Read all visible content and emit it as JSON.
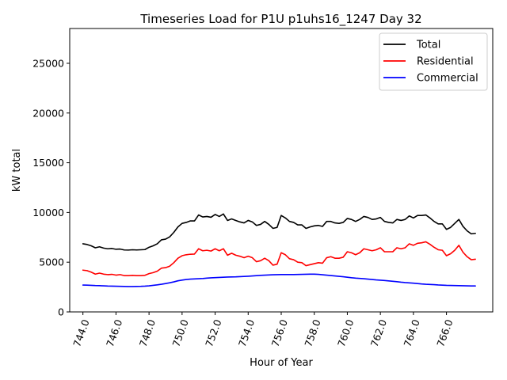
{
  "chart_data": {
    "type": "line",
    "title": "Timeseries Load for P1U p1uhs16_1247  Day 32",
    "xlabel": "Hour of Year",
    "ylabel": "kW total",
    "xlim": [
      743.2,
      768.8
    ],
    "ylim": [
      0,
      28500
    ],
    "xticks": [
      744.0,
      746.0,
      748.0,
      750.0,
      752.0,
      754.0,
      756.0,
      758.0,
      760.0,
      762.0,
      764.0,
      766.0
    ],
    "xtick_labels": [
      "744.0",
      "746.0",
      "748.0",
      "750.0",
      "752.0",
      "754.0",
      "756.0",
      "758.0",
      "760.0",
      "762.0",
      "764.0",
      "766.0"
    ],
    "yticks": [
      0,
      5000,
      10000,
      15000,
      20000,
      25000
    ],
    "ytick_labels": [
      "0",
      "5000",
      "10000",
      "15000",
      "20000",
      "25000"
    ],
    "x_start": 744.0,
    "x_step": 0.25,
    "legend_position": "top-right",
    "series": [
      {
        "name": "Total",
        "color": "#000000",
        "values": [
          6850,
          6780,
          6650,
          6450,
          6550,
          6420,
          6350,
          6380,
          6300,
          6320,
          6230,
          6220,
          6250,
          6230,
          6250,
          6270,
          6500,
          6650,
          6850,
          7250,
          7320,
          7550,
          8000,
          8550,
          8900,
          9000,
          9150,
          9150,
          9750,
          9550,
          9600,
          9520,
          9800,
          9600,
          9850,
          9200,
          9350,
          9200,
          9050,
          8950,
          9200,
          9050,
          8700,
          8800,
          9100,
          8800,
          8400,
          8500,
          9700,
          9450,
          9100,
          9000,
          8750,
          8750,
          8400,
          8550,
          8650,
          8700,
          8600,
          9100,
          9100,
          8950,
          8900,
          9000,
          9400,
          9300,
          9100,
          9300,
          9600,
          9500,
          9300,
          9350,
          9500,
          9100,
          9000,
          8950,
          9300,
          9200,
          9300,
          9650,
          9450,
          9700,
          9700,
          9750,
          9450,
          9100,
          8850,
          8850,
          8300,
          8500,
          8900,
          9300,
          8600,
          8150,
          7850,
          7900
        ]
      },
      {
        "name": "Residential",
        "color": "#ff0000",
        "values": [
          4200,
          4150,
          4000,
          3800,
          3900,
          3800,
          3750,
          3780,
          3700,
          3750,
          3650,
          3650,
          3680,
          3650,
          3650,
          3680,
          3850,
          3950,
          4100,
          4400,
          4450,
          4600,
          4950,
          5400,
          5650,
          5750,
          5800,
          5820,
          6350,
          6150,
          6200,
          6120,
          6350,
          6150,
          6350,
          5700,
          5900,
          5700,
          5600,
          5450,
          5600,
          5450,
          5050,
          5150,
          5400,
          5150,
          4700,
          4800,
          5950,
          5750,
          5350,
          5250,
          5000,
          4950,
          4650,
          4750,
          4850,
          4950,
          4900,
          5450,
          5550,
          5400,
          5400,
          5500,
          6050,
          5950,
          5750,
          5950,
          6350,
          6250,
          6150,
          6250,
          6450,
          6050,
          6050,
          6050,
          6450,
          6350,
          6450,
          6850,
          6700,
          6900,
          6950,
          7050,
          6800,
          6500,
          6250,
          6200,
          5650,
          5850,
          6200,
          6700,
          6000,
          5550,
          5250,
          5300
        ]
      },
      {
        "name": "Commercial",
        "color": "#0000ff",
        "values": [
          2700,
          2690,
          2670,
          2650,
          2640,
          2620,
          2600,
          2590,
          2580,
          2570,
          2560,
          2555,
          2555,
          2560,
          2570,
          2590,
          2620,
          2670,
          2720,
          2780,
          2850,
          2930,
          3020,
          3130,
          3200,
          3260,
          3300,
          3320,
          3340,
          3360,
          3400,
          3430,
          3450,
          3470,
          3490,
          3510,
          3520,
          3530,
          3550,
          3570,
          3590,
          3620,
          3650,
          3680,
          3700,
          3720,
          3740,
          3750,
          3760,
          3760,
          3760,
          3760,
          3770,
          3780,
          3790,
          3800,
          3800,
          3780,
          3740,
          3700,
          3660,
          3620,
          3580,
          3540,
          3490,
          3440,
          3400,
          3370,
          3340,
          3300,
          3260,
          3220,
          3190,
          3160,
          3120,
          3080,
          3040,
          2990,
          2950,
          2920,
          2890,
          2850,
          2810,
          2780,
          2760,
          2740,
          2710,
          2690,
          2670,
          2660,
          2650,
          2640,
          2630,
          2620,
          2610,
          2610
        ]
      }
    ]
  }
}
